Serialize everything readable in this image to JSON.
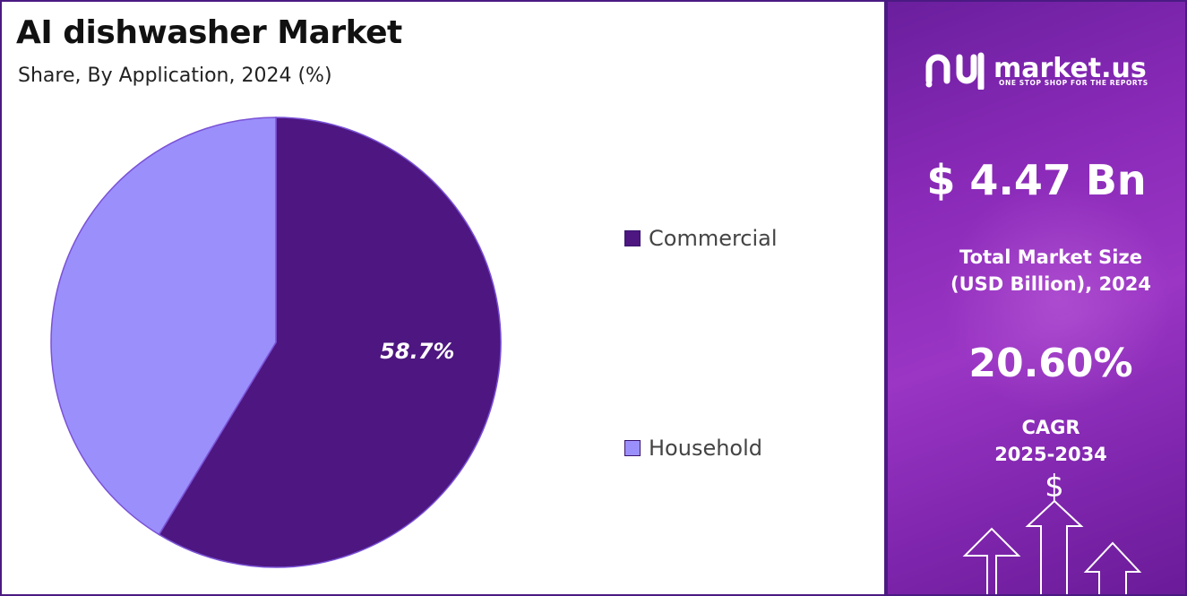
{
  "chart_data": {
    "type": "pie",
    "title": "AI dishwasher Market",
    "subtitle": "Share, By Application, 2024 (%)",
    "slices": [
      {
        "label": "Commercial",
        "value": 58.7,
        "display": "58.7%",
        "color": "#4d1680"
      },
      {
        "label": "Household",
        "value": 41.3,
        "display": "",
        "color": "#9b8ffc"
      }
    ],
    "legend_position": "right"
  },
  "side_panel": {
    "logo_text": "market.us",
    "tagline": "ONE STOP SHOP FOR THE REPORTS",
    "market_size_value": "$ 4.47 Bn",
    "market_size_caption_line1": "Total Market Size",
    "market_size_caption_line2": "(USD Billion), 2024",
    "cagr_value": "20.60%",
    "cagr_caption_line1": "CAGR",
    "cagr_caption_line2": "2025-2034",
    "icons": [
      "market-us-logo-icon",
      "dollar-sign-icon",
      "up-arrows-icon"
    ]
  },
  "colors": {
    "border": "#4a1a82",
    "panel_bg": "#8a2ab8"
  }
}
